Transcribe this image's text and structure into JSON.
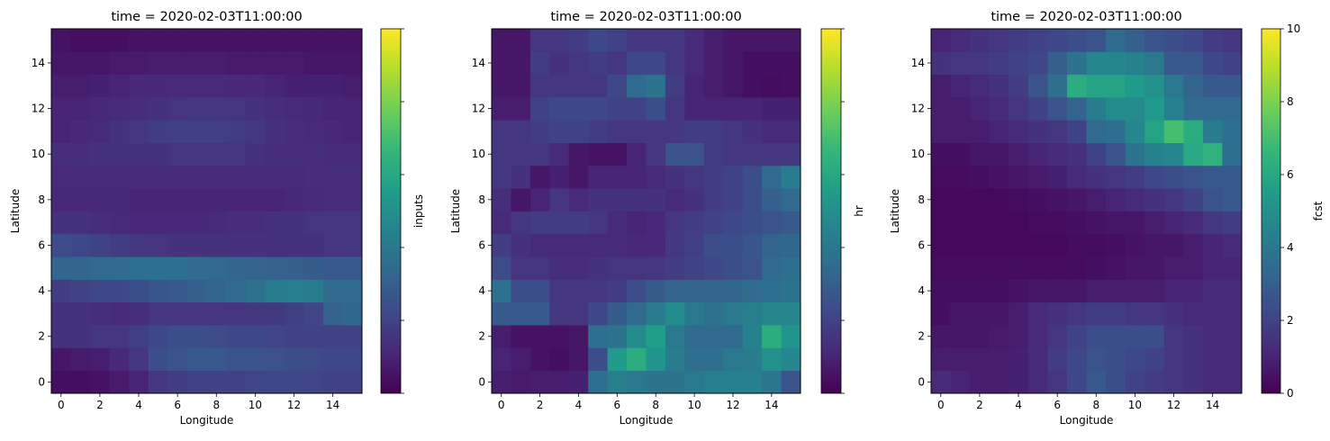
{
  "chart_data": [
    {
      "type": "heatmap",
      "title": "time = 2020-02-03T11:00:00",
      "xlabel": "Longitude",
      "ylabel": "Latitude",
      "colorbar_label": "inputs",
      "colorbar_ticks": [],
      "colormap": "viridis",
      "vmin": 0,
      "vmax": 10,
      "x": [
        0,
        1,
        2,
        3,
        4,
        5,
        6,
        7,
        8,
        9,
        10,
        11,
        12,
        13,
        14,
        15
      ],
      "y": [
        0,
        1,
        2,
        3,
        4,
        5,
        6,
        7,
        8,
        9,
        10,
        11,
        12,
        13,
        14,
        15
      ],
      "xticks": [
        0,
        2,
        4,
        6,
        8,
        10,
        12,
        14
      ],
      "yticks": [
        0,
        2,
        4,
        6,
        8,
        10,
        12,
        14
      ],
      "values": [
        [
          0.4,
          0.4,
          0.5,
          0.7,
          1.0,
          1.6,
          1.8,
          2.0,
          2.0,
          2.0,
          2.1,
          2.2,
          2.2,
          2.1,
          2.0,
          2.0
        ],
        [
          0.6,
          0.7,
          0.8,
          1.1,
          1.6,
          2.4,
          2.6,
          2.8,
          2.8,
          2.6,
          2.6,
          2.5,
          2.4,
          2.3,
          2.2,
          2.2
        ],
        [
          1.4,
          1.4,
          1.6,
          1.6,
          1.9,
          2.2,
          2.4,
          2.4,
          2.3,
          2.2,
          2.2,
          2.1,
          2.0,
          2.0,
          2.0,
          2.0
        ],
        [
          1.4,
          1.4,
          1.3,
          1.2,
          1.3,
          1.5,
          1.5,
          1.5,
          1.5,
          1.5,
          1.6,
          1.7,
          1.9,
          2.1,
          3.1,
          3.3
        ],
        [
          1.8,
          2.0,
          2.2,
          2.2,
          2.4,
          2.7,
          2.8,
          3.0,
          3.2,
          3.4,
          3.7,
          4.2,
          4.3,
          4.2,
          3.5,
          3.5
        ],
        [
          3.3,
          3.3,
          3.4,
          3.5,
          3.6,
          3.6,
          3.6,
          3.5,
          3.4,
          3.3,
          3.2,
          3.1,
          3.0,
          2.9,
          2.8,
          2.8
        ],
        [
          2.3,
          2.2,
          2.0,
          1.8,
          1.6,
          1.5,
          1.4,
          1.4,
          1.4,
          1.4,
          1.4,
          1.4,
          1.4,
          1.4,
          1.5,
          1.5
        ],
        [
          1.4,
          1.4,
          1.3,
          1.2,
          1.1,
          1.1,
          1.1,
          1.1,
          1.2,
          1.3,
          1.3,
          1.4,
          1.4,
          1.5,
          1.6,
          1.6
        ],
        [
          1.1,
          1.1,
          1.1,
          1.1,
          1.0,
          1.0,
          1.0,
          1.0,
          1.0,
          1.0,
          1.0,
          1.0,
          1.1,
          1.2,
          1.3,
          1.3
        ],
        [
          1.2,
          1.2,
          1.2,
          1.2,
          1.2,
          1.2,
          1.2,
          1.2,
          1.2,
          1.2,
          1.2,
          1.2,
          1.2,
          1.3,
          1.3,
          1.3
        ],
        [
          1.3,
          1.3,
          1.4,
          1.4,
          1.4,
          1.4,
          1.5,
          1.5,
          1.5,
          1.5,
          1.4,
          1.3,
          1.3,
          1.3,
          1.2,
          1.2
        ],
        [
          1.0,
          1.1,
          1.2,
          1.4,
          1.6,
          1.8,
          1.9,
          1.9,
          1.9,
          1.8,
          1.6,
          1.4,
          1.3,
          1.2,
          1.1,
          1.0
        ],
        [
          1.0,
          1.0,
          1.1,
          1.2,
          1.3,
          1.4,
          1.5,
          1.6,
          1.6,
          1.5,
          1.4,
          1.3,
          1.2,
          1.1,
          1.0,
          1.0
        ],
        [
          0.8,
          0.8,
          0.9,
          1.0,
          1.1,
          1.1,
          1.2,
          1.2,
          1.2,
          1.1,
          1.1,
          1.0,
          0.9,
          0.9,
          0.9,
          0.8
        ],
        [
          0.6,
          0.6,
          0.6,
          0.7,
          0.7,
          0.8,
          0.8,
          0.8,
          0.8,
          0.7,
          0.7,
          0.7,
          0.7,
          0.6,
          0.6,
          0.6
        ],
        [
          0.5,
          0.4,
          0.4,
          0.4,
          0.5,
          0.5,
          0.5,
          0.5,
          0.5,
          0.5,
          0.5,
          0.5,
          0.5,
          0.5,
          0.5,
          0.5
        ]
      ]
    },
    {
      "type": "heatmap",
      "title": "time = 2020-02-03T11:00:00",
      "xlabel": "Longitude",
      "ylabel": "Latitude",
      "colorbar_label": "hr",
      "colorbar_ticks": [],
      "colormap": "viridis",
      "vmin": 0,
      "vmax": 10,
      "x": [
        0,
        1,
        2,
        3,
        4,
        5,
        6,
        7,
        8,
        9,
        10,
        11,
        12,
        13,
        14,
        15
      ],
      "y": [
        0,
        1,
        2,
        3,
        4,
        5,
        6,
        7,
        8,
        9,
        10,
        11,
        12,
        13,
        14,
        15
      ],
      "xticks": [
        0,
        2,
        4,
        6,
        8,
        10,
        12,
        14
      ],
      "yticks": [
        0,
        2,
        4,
        6,
        8,
        10,
        12,
        14
      ],
      "values": [
        [
          0.8,
          0.7,
          0.8,
          0.8,
          0.9,
          3.6,
          4.3,
          4.0,
          3.8,
          3.8,
          4.0,
          4.3,
          4.4,
          4.4,
          3.9,
          2.6
        ],
        [
          1.0,
          0.8,
          0.5,
          0.4,
          0.6,
          2.4,
          5.4,
          6.2,
          5.2,
          4.2,
          3.6,
          3.6,
          4.0,
          4.2,
          5.0,
          4.6
        ],
        [
          0.8,
          0.5,
          0.5,
          0.5,
          0.6,
          3.6,
          3.8,
          4.8,
          5.6,
          4.0,
          3.4,
          3.4,
          3.4,
          4.4,
          6.2,
          5.2
        ],
        [
          2.8,
          2.8,
          2.8,
          1.6,
          1.6,
          2.2,
          2.9,
          3.4,
          4.2,
          4.9,
          4.0,
          3.7,
          4.0,
          4.3,
          4.6,
          4.6
        ],
        [
          3.7,
          2.4,
          2.4,
          1.6,
          1.6,
          1.6,
          1.8,
          2.4,
          2.9,
          3.2,
          3.2,
          3.2,
          3.3,
          3.5,
          3.6,
          3.8
        ],
        [
          2.3,
          1.5,
          1.5,
          1.3,
          1.3,
          1.4,
          1.5,
          1.5,
          1.6,
          1.8,
          2.0,
          2.2,
          2.4,
          2.6,
          3.4,
          3.6
        ],
        [
          1.8,
          1.4,
          1.2,
          1.2,
          1.2,
          1.2,
          1.2,
          1.1,
          1.1,
          1.7,
          1.9,
          2.4,
          2.4,
          2.7,
          3.2,
          3.3
        ],
        [
          1.2,
          1.6,
          1.8,
          1.8,
          1.8,
          1.6,
          1.2,
          1.0,
          1.1,
          1.6,
          1.8,
          2.0,
          2.2,
          2.4,
          2.6,
          2.8
        ],
        [
          1.3,
          0.6,
          1.0,
          1.6,
          1.2,
          1.4,
          1.4,
          1.4,
          1.4,
          1.2,
          1.4,
          1.8,
          2.0,
          2.4,
          3.0,
          3.4
        ],
        [
          1.6,
          1.4,
          0.6,
          0.9,
          0.6,
          1.0,
          1.0,
          1.0,
          1.2,
          1.4,
          1.6,
          1.8,
          2.0,
          2.4,
          3.4,
          4.2
        ],
        [
          1.6,
          1.5,
          1.6,
          1.2,
          0.6,
          0.5,
          0.5,
          1.0,
          1.6,
          2.6,
          2.6,
          1.8,
          1.6,
          1.6,
          1.6,
          1.6
        ],
        [
          1.6,
          1.6,
          1.8,
          2.0,
          2.0,
          1.8,
          1.6,
          1.6,
          1.6,
          1.6,
          1.8,
          1.8,
          1.6,
          1.4,
          1.2,
          1.2
        ],
        [
          0.8,
          0.8,
          2.0,
          2.2,
          2.2,
          2.2,
          2.0,
          2.0,
          2.4,
          1.6,
          1.0,
          1.0,
          1.0,
          1.0,
          0.9,
          0.9
        ],
        [
          0.6,
          0.6,
          1.6,
          1.6,
          1.6,
          1.6,
          2.2,
          3.4,
          3.8,
          1.8,
          1.0,
          0.8,
          0.6,
          0.4,
          0.3,
          0.4
        ],
        [
          0.6,
          0.6,
          1.8,
          1.4,
          1.6,
          1.8,
          1.6,
          2.2,
          2.2,
          1.6,
          1.2,
          0.8,
          0.6,
          0.4,
          0.4,
          0.4
        ],
        [
          0.6,
          0.6,
          1.6,
          1.6,
          1.8,
          2.2,
          2.0,
          1.6,
          1.6,
          1.6,
          1.2,
          0.8,
          0.6,
          0.6,
          0.6,
          0.6
        ]
      ]
    },
    {
      "type": "heatmap",
      "title": "time = 2020-02-03T11:00:00",
      "xlabel": "Longitude",
      "ylabel": "Latitude",
      "colorbar_label": "fcst",
      "colorbar_ticks": [
        0,
        2,
        4,
        6,
        8,
        10
      ],
      "colormap": "viridis",
      "vmin": 0,
      "vmax": 10,
      "x": [
        0,
        1,
        2,
        3,
        4,
        5,
        6,
        7,
        8,
        9,
        10,
        11,
        12,
        13,
        14,
        15
      ],
      "y": [
        0,
        1,
        2,
        3,
        4,
        5,
        6,
        7,
        8,
        9,
        10,
        11,
        12,
        13,
        14,
        15
      ],
      "xticks": [
        0,
        2,
        4,
        6,
        8,
        10,
        12,
        14
      ],
      "yticks": [
        0,
        2,
        4,
        6,
        8,
        10,
        12,
        14
      ],
      "values": [
        [
          1.2,
          1.0,
          0.8,
          0.8,
          0.9,
          1.2,
          1.6,
          2.2,
          2.8,
          2.4,
          2.0,
          1.8,
          1.6,
          1.4,
          1.2,
          1.2
        ],
        [
          0.8,
          0.8,
          0.8,
          0.8,
          0.9,
          1.2,
          1.8,
          2.2,
          2.6,
          2.4,
          2.2,
          2.0,
          1.6,
          1.4,
          1.2,
          1.2
        ],
        [
          0.6,
          0.6,
          0.6,
          0.7,
          0.8,
          1.2,
          1.6,
          2.0,
          2.4,
          2.4,
          2.4,
          2.4,
          1.6,
          1.4,
          1.2,
          1.2
        ],
        [
          0.4,
          0.6,
          0.6,
          0.6,
          0.8,
          1.2,
          1.4,
          1.6,
          1.8,
          1.8,
          1.6,
          1.6,
          1.4,
          1.2,
          1.2,
          1.2
        ],
        [
          0.4,
          0.4,
          0.4,
          0.4,
          0.5,
          0.6,
          0.6,
          0.6,
          0.8,
          0.8,
          0.8,
          0.8,
          1.0,
          1.0,
          1.2,
          1.2
        ],
        [
          0.3,
          0.3,
          0.3,
          0.3,
          0.3,
          0.3,
          0.3,
          0.3,
          0.4,
          0.5,
          0.6,
          0.6,
          0.8,
          0.8,
          1.0,
          1.0
        ],
        [
          0.2,
          0.2,
          0.2,
          0.2,
          0.2,
          0.2,
          0.2,
          0.3,
          0.3,
          0.4,
          0.5,
          0.6,
          0.6,
          0.8,
          1.0,
          1.2
        ],
        [
          0.2,
          0.2,
          0.2,
          0.2,
          0.2,
          0.3,
          0.3,
          0.4,
          0.5,
          0.6,
          0.6,
          0.8,
          1.0,
          1.2,
          1.6,
          1.8
        ],
        [
          0.2,
          0.2,
          0.2,
          0.2,
          0.3,
          0.4,
          0.5,
          0.6,
          0.8,
          1.0,
          1.2,
          1.4,
          1.6,
          2.0,
          2.6,
          2.8
        ],
        [
          0.3,
          0.3,
          0.4,
          0.5,
          0.6,
          0.7,
          0.9,
          1.2,
          1.4,
          1.6,
          1.8,
          2.2,
          2.4,
          2.6,
          2.8,
          2.8
        ],
        [
          0.4,
          0.4,
          0.6,
          0.6,
          0.8,
          1.0,
          1.2,
          1.4,
          2.0,
          2.6,
          3.8,
          4.4,
          4.6,
          6.0,
          6.4,
          3.6
        ],
        [
          0.8,
          0.8,
          0.8,
          1.0,
          1.2,
          1.4,
          1.6,
          2.0,
          3.4,
          3.6,
          4.6,
          5.8,
          7.0,
          6.2,
          4.2,
          3.6
        ],
        [
          0.8,
          0.8,
          1.0,
          1.2,
          1.6,
          2.0,
          2.6,
          3.2,
          4.2,
          4.8,
          4.8,
          5.4,
          4.4,
          3.4,
          3.4,
          3.4
        ],
        [
          0.8,
          1.0,
          1.2,
          1.4,
          1.8,
          2.6,
          3.6,
          6.2,
          5.8,
          5.8,
          5.4,
          5.0,
          4.0,
          3.2,
          2.8,
          2.8
        ],
        [
          1.4,
          1.6,
          1.6,
          1.8,
          2.0,
          2.2,
          3.0,
          3.8,
          4.6,
          4.6,
          4.4,
          4.0,
          2.8,
          2.8,
          2.2,
          2.0
        ],
        [
          1.0,
          1.2,
          1.4,
          1.6,
          1.8,
          2.0,
          2.2,
          2.4,
          2.6,
          3.4,
          3.0,
          2.6,
          2.4,
          2.2,
          1.8,
          1.6
        ]
      ]
    }
  ]
}
